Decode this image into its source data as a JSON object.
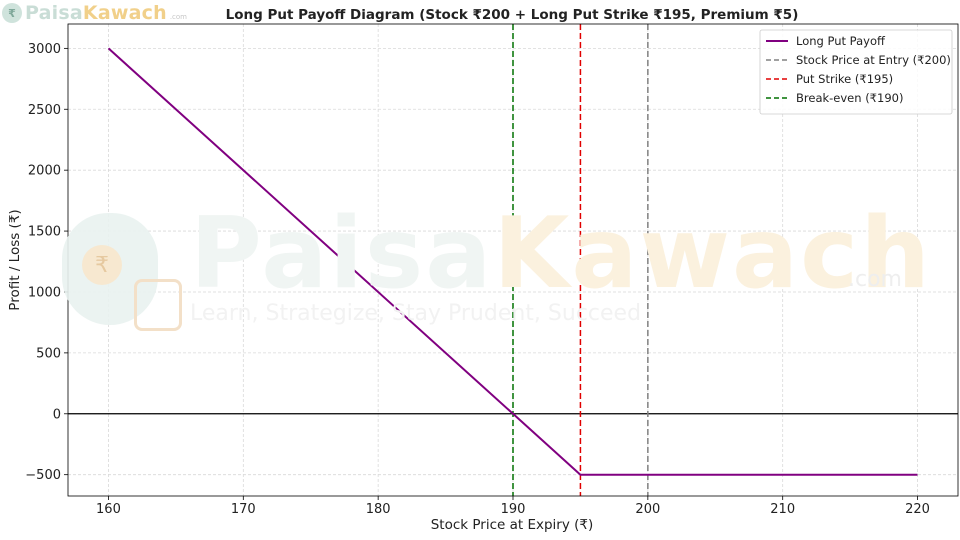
{
  "brand": {
    "logo_prefix": "Paisa",
    "logo_accent": "Kawach",
    "logo_suffix": ".com",
    "tagline": "Learn, Strategize, Stay Prudent, Succeed"
  },
  "chart_data": {
    "type": "line",
    "title": "Long Put Payoff Diagram (Stock ₹200 + Long Put Strike ₹195, Premium ₹5)",
    "xlabel": "Stock Price at Expiry (₹)",
    "ylabel": "Profit / Loss (₹)",
    "xlim": [
      157,
      223
    ],
    "ylim": [
      -675,
      3200
    ],
    "xticks": [
      160,
      170,
      180,
      190,
      200,
      210,
      220
    ],
    "yticks": [
      -500,
      0,
      500,
      1000,
      1500,
      2000,
      2500,
      3000
    ],
    "grid": true,
    "legend_position": "top-right",
    "series": [
      {
        "name": "Long Put Payoff",
        "style": "solid",
        "color": "#800080",
        "x": [
          160,
          190,
          195,
          200,
          220
        ],
        "y": [
          3000,
          0,
          -500,
          -500,
          -500
        ]
      }
    ],
    "vlines": [
      {
        "name": "Stock Price at Entry (₹200)",
        "x": 200,
        "color": "#808080",
        "style": "dashed"
      },
      {
        "name": "Put Strike (₹195)",
        "x": 195,
        "color": "#e00000",
        "style": "dashed"
      },
      {
        "name": "Break-even (₹190)",
        "x": 190,
        "color": "#007000",
        "style": "dashed"
      }
    ],
    "hline": {
      "y": 0,
      "color": "#000000"
    }
  }
}
